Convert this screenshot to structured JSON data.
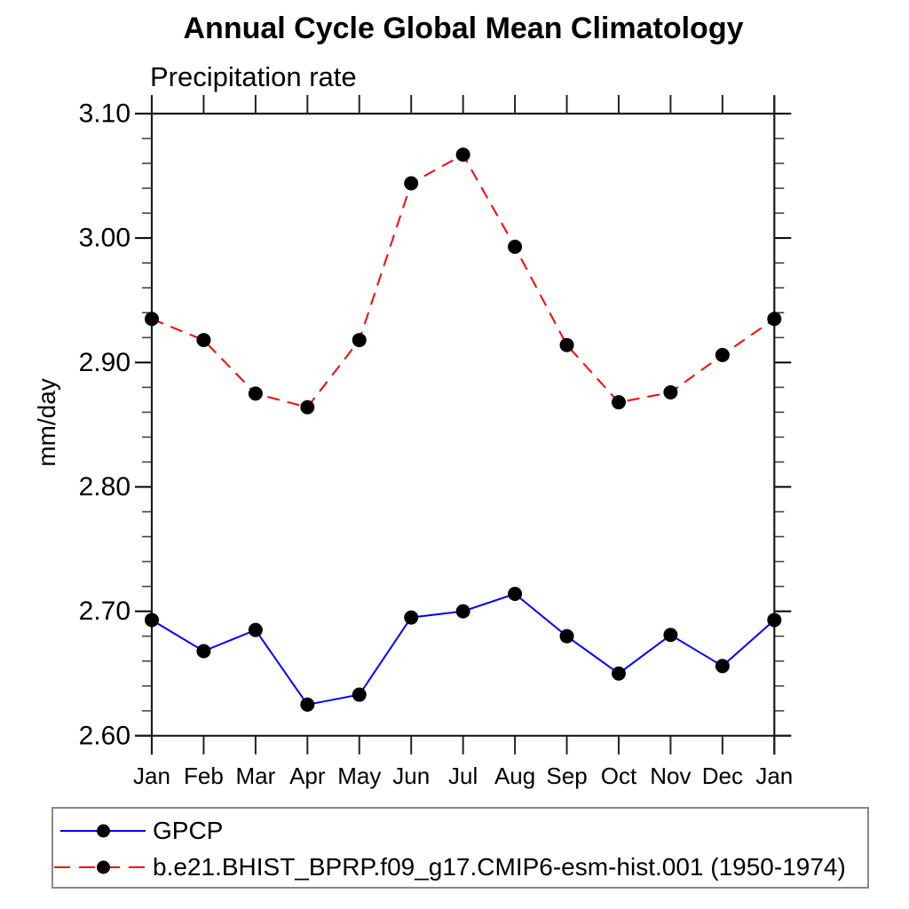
{
  "chart_data": {
    "type": "line",
    "title": "Annual Cycle Global Mean Climatology",
    "subtitle": "Precipitation rate",
    "ylabel": "mm/day",
    "x_categories": [
      "Jan",
      "Feb",
      "Mar",
      "Apr",
      "May",
      "Jun",
      "Jul",
      "Aug",
      "Sep",
      "Oct",
      "Nov",
      "Dec",
      "Jan"
    ],
    "ylim": [
      2.6,
      3.1
    ],
    "y_major_step": 0.1,
    "y_minor_step": 0.02,
    "y_tick_labels": [
      "3.10",
      "3.00",
      "2.90",
      "2.80",
      "2.70",
      "2.60"
    ],
    "grid": false,
    "legend_position": "bottom-left-box",
    "axis_color": "#1a1a1a",
    "series": [
      {
        "name": "GPCP",
        "line_style": "solid",
        "color": "#0000ff",
        "marker": "filled-circle",
        "marker_color": "#000000",
        "values": [
          2.693,
          2.668,
          2.685,
          2.625,
          2.633,
          2.695,
          2.7,
          2.714,
          2.68,
          2.65,
          2.681,
          2.656,
          2.693
        ]
      },
      {
        "name": "b.e21.BHIST_BPRP.f09_g17.CMIP6-esm-hist.001 (1950-1974)",
        "line_style": "dashed",
        "color": "#ff0000",
        "marker": "filled-circle",
        "marker_color": "#000000",
        "values": [
          2.935,
          2.918,
          2.875,
          2.864,
          2.918,
          3.044,
          3.067,
          2.993,
          2.914,
          2.868,
          2.876,
          2.906,
          2.935
        ]
      }
    ]
  }
}
